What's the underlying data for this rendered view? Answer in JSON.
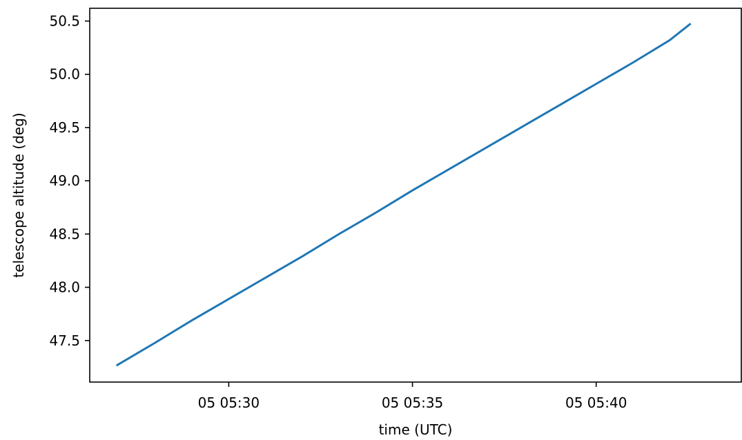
{
  "chart_data": {
    "type": "line",
    "title": "",
    "xlabel": "time (UTC)",
    "ylabel": "telescope altitude (deg)",
    "x_tick_labels": [
      "05 05:30",
      "05 05:35",
      "05 05:40"
    ],
    "x_tick_values": [
      "05:30:00",
      "05:35:00",
      "05:40:00"
    ],
    "y_tick_labels": [
      "47.5",
      "48.0",
      "48.5",
      "49.0",
      "49.5",
      "50.0",
      "50.5"
    ],
    "y_tick_values": [
      47.5,
      48.0,
      48.5,
      49.0,
      49.5,
      50.0,
      50.5
    ],
    "xlim": [
      "05:26:13",
      "05:43:57"
    ],
    "ylim": [
      47.11,
      50.62
    ],
    "grid": false,
    "series": [
      {
        "color": "#1f77b4",
        "x": [
          "05:26:58",
          "05:28:00",
          "05:29:00",
          "05:30:00",
          "05:31:00",
          "05:32:00",
          "05:33:00",
          "05:34:00",
          "05:35:00",
          "05:36:00",
          "05:37:00",
          "05:38:00",
          "05:39:00",
          "05:40:00",
          "05:41:00",
          "05:42:00",
          "05:42:33"
        ],
        "y": [
          47.27,
          47.48,
          47.69,
          47.89,
          48.09,
          48.29,
          48.5,
          48.7,
          48.91,
          49.11,
          49.31,
          49.51,
          49.71,
          49.91,
          50.11,
          50.32,
          50.47
        ]
      }
    ]
  }
}
